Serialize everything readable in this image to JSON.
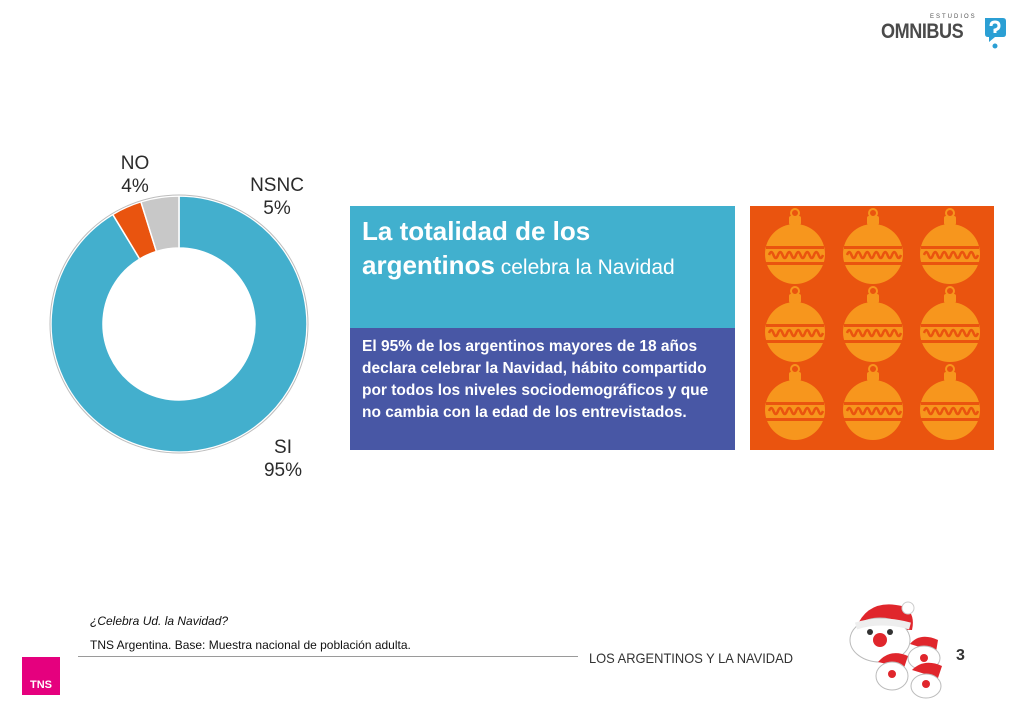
{
  "brand": {
    "logo_small": "ESTUDIOS",
    "logo_main": "OMNIBUS",
    "corner_logo": "TNS"
  },
  "chart_data": {
    "type": "pie",
    "categories": [
      "SI",
      "NO",
      "NSNC"
    ],
    "values": [
      95,
      4,
      5
    ],
    "value_labels": [
      "95%",
      "4%",
      "5%"
    ],
    "colors": [
      "#43afcd",
      "#e9540f",
      "#c8c8c8"
    ],
    "donut": true
  },
  "panel": {
    "title_bold": "La totalidad de los argentinos",
    "title_regular": " celebra la Navidad",
    "body": "El 95% de los argentinos mayores de 18 años declara celebrar la Navidad, hábito compartido por todos los niveles sociodemográficos y que no cambia con la edad de los entrevistados."
  },
  "footer": {
    "question": "¿Celebra Ud. la Navidad?",
    "base": "TNS Argentina. Base: Muestra nacional de población adulta.",
    "section_title": "LOS ARGENTINOS Y LA NAVIDAD",
    "page_number": "3"
  },
  "decor": {
    "ornaments_icon": "christmas-ornament-icon",
    "santa_icon": "santa-face-icon",
    "ornament_color": "#f7961d",
    "ornament_background": "#ea540f"
  }
}
